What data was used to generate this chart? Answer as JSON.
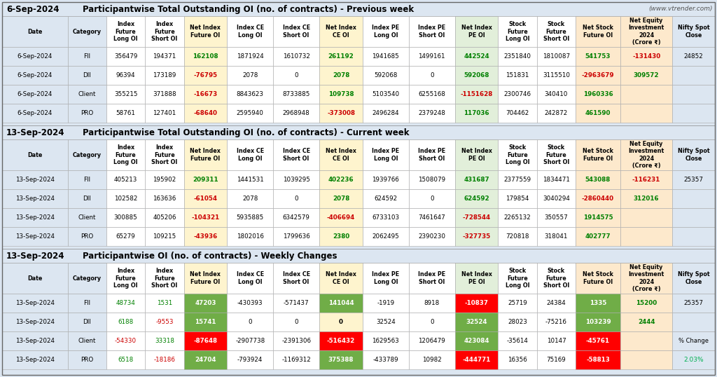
{
  "title1_date": "6-Sep-2024",
  "title1_main": "Participantwise Total Outstanding OI (no. of contracts) - Previous week",
  "title1_website": "(www.vtrender.com)",
  "title2_date": "13-Sep-2024",
  "title2_main": "Participantwise Total Outstanding OI (no. of contracts) - Current week",
  "title3_date": "13-Sep-2024",
  "title3_main": "Participantwise OI (no. of contracts) - Weekly Changes",
  "col_headers": [
    "Date",
    "Category",
    "Index\nFuture\nLong OI",
    "Index\nFuture\nShort OI",
    "Net Index\nFuture OI",
    "Index CE\nLong OI",
    "Index CE\nShort OI",
    "Net Index\nCE OI",
    "Index PE\nLong OI",
    "Index PE\nShort OI",
    "Net Index\nPE OI",
    "Stock\nFuture\nLong OI",
    "Stock\nFuture\nShort OI",
    "Net Stock\nFuture OI",
    "Net Equity\nInvestment\n2024\n(Crore ₹)",
    "Nifty Spot\nClose"
  ],
  "section1_rows": [
    [
      "6-Sep-2024",
      "FII",
      "356479",
      "194371",
      "162108",
      "1871924",
      "1610732",
      "261192",
      "1941685",
      "1499161",
      "442524",
      "2351840",
      "1810087",
      "541753",
      "-131430",
      "24852"
    ],
    [
      "6-Sep-2024",
      "DII",
      "96394",
      "173189",
      "-76795",
      "2078",
      "0",
      "2078",
      "592068",
      "0",
      "592068",
      "151831",
      "3115510",
      "-2963679",
      "309572",
      ""
    ],
    [
      "6-Sep-2024",
      "Client",
      "355215",
      "371888",
      "-16673",
      "8843623",
      "8733885",
      "109738",
      "5103540",
      "6255168",
      "-1151628",
      "2300746",
      "340410",
      "1960336",
      "",
      ""
    ],
    [
      "6-Sep-2024",
      "PRO",
      "58761",
      "127401",
      "-68640",
      "2595940",
      "2968948",
      "-373008",
      "2496284",
      "2379248",
      "117036",
      "704462",
      "242872",
      "461590",
      "",
      ""
    ]
  ],
  "section2_rows": [
    [
      "13-Sep-2024",
      "FII",
      "405213",
      "195902",
      "209311",
      "1441531",
      "1039295",
      "402236",
      "1939766",
      "1508079",
      "431687",
      "2377559",
      "1834471",
      "543088",
      "-116231",
      "25357"
    ],
    [
      "13-Sep-2024",
      "DII",
      "102582",
      "163636",
      "-61054",
      "2078",
      "0",
      "2078",
      "624592",
      "0",
      "624592",
      "179854",
      "3040294",
      "-2860440",
      "312016",
      ""
    ],
    [
      "13-Sep-2024",
      "Client",
      "300885",
      "405206",
      "-104321",
      "5935885",
      "6342579",
      "-406694",
      "6733103",
      "7461647",
      "-728544",
      "2265132",
      "350557",
      "1914575",
      "",
      ""
    ],
    [
      "13-Sep-2024",
      "PRO",
      "65279",
      "109215",
      "-43936",
      "1802016",
      "1799636",
      "2380",
      "2062495",
      "2390230",
      "-327735",
      "720818",
      "318041",
      "402777",
      "",
      ""
    ]
  ],
  "section3_rows": [
    [
      "13-Sep-2024",
      "FII",
      "48734",
      "1531",
      "47203",
      "-430393",
      "-571437",
      "141044",
      "-1919",
      "8918",
      "-10837",
      "25719",
      "24384",
      "1335",
      "15200",
      "25357"
    ],
    [
      "13-Sep-2024",
      "DII",
      "6188",
      "-9553",
      "15741",
      "0",
      "0",
      "0",
      "32524",
      "0",
      "32524",
      "28023",
      "-75216",
      "103239",
      "2444",
      ""
    ],
    [
      "13-Sep-2024",
      "Client",
      "-54330",
      "33318",
      "-87648",
      "-2907738",
      "-2391306",
      "-516432",
      "1629563",
      "1206479",
      "423084",
      "-35614",
      "10147",
      "-45761",
      "",
      ""
    ],
    [
      "13-Sep-2024",
      "PRO",
      "6518",
      "-18186",
      "24704",
      "-793924",
      "-1169312",
      "375388",
      "-433789",
      "10982",
      "-444771",
      "16356",
      "75169",
      "-58813",
      "",
      ""
    ]
  ],
  "pct_change_label": "% Change",
  "pct_change_value": "2.03%",
  "bg_section": "#dce6f1",
  "bg_white": "#ffffff",
  "bg_net_future": "#fef4ce",
  "bg_net_ce": "#fef4ce",
  "bg_net_pe": "#e2efda",
  "bg_net_stock": "#fde9cc",
  "bg_net_equity": "#fde9cc",
  "bg_nifty": "#dce6f1",
  "pos_color": "#008000",
  "neg_color": "#cc0000",
  "black": "#000000",
  "green_cell": "#70ad47",
  "red_cell": "#ff0000",
  "green_text_pct": "#00b050",
  "title_fontsize": 8.5,
  "header_fontsize": 5.8,
  "data_fontsize": 6.3
}
